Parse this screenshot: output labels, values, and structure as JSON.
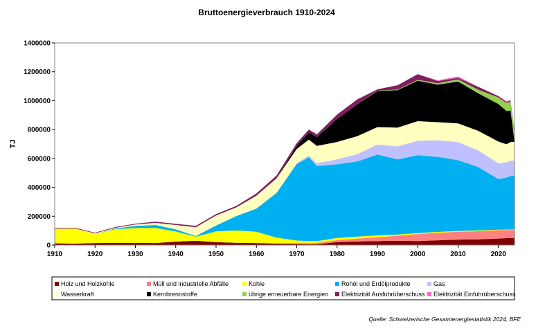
{
  "chart_data": {
    "type": "area",
    "title": "Bruttoenergieverbrauch 1910-2024",
    "ylabel": "TJ",
    "xlabel": "",
    "xlim": [
      1910,
      2024
    ],
    "ylim": [
      0,
      1400000
    ],
    "x_ticks": [
      "1910",
      "1920",
      "1930",
      "1940",
      "1950",
      "1960",
      "1970",
      "1980",
      "1990",
      "2000",
      "2010",
      "2020"
    ],
    "y_ticks": [
      "0",
      "200000",
      "400000",
      "600000",
      "800000",
      "1000000",
      "1200000",
      "1400000"
    ],
    "grid": false,
    "legend_position": "bottom",
    "source": "Quelle: Schweizerische Gesamtenergiestatistik 2024, BFE",
    "years": [
      1910,
      1915,
      1920,
      1925,
      1930,
      1935,
      1940,
      1945,
      1950,
      1955,
      1960,
      1965,
      1970,
      1973,
      1975,
      1980,
      1985,
      1990,
      1995,
      2000,
      2005,
      2010,
      2015,
      2020,
      2022,
      2023,
      2024
    ],
    "series": [
      {
        "name": "Holz und Holzkohle",
        "color": "#7f0000",
        "values": [
          12000,
          10000,
          14000,
          15000,
          15000,
          14000,
          24000,
          30000,
          20000,
          16000,
          14000,
          10000,
          8000,
          6000,
          6000,
          20000,
          25000,
          28000,
          30000,
          28000,
          33000,
          38000,
          40000,
          45000,
          48000,
          48000,
          48000
        ]
      },
      {
        "name": "Müll und  industrielle Abfälle",
        "color": "#ff8080",
        "values": [
          0,
          0,
          0,
          0,
          0,
          0,
          0,
          0,
          0,
          0,
          0,
          2000,
          5000,
          7000,
          9000,
          14000,
          20000,
          25000,
          35000,
          48000,
          52000,
          54000,
          56000,
          58000,
          56000,
          56000,
          56000
        ]
      },
      {
        "name": "Kohle",
        "color": "#ffff00",
        "values": [
          100000,
          105000,
          62000,
          95000,
          103000,
          105000,
          70000,
          28000,
          75000,
          85000,
          78000,
          40000,
          18000,
          15000,
          12000,
          15000,
          14000,
          14000,
          8000,
          7000,
          6000,
          6000,
          5000,
          4000,
          4000,
          4000,
          4000
        ]
      },
      {
        "name": "Rohöl und Erdölprodukte",
        "color": "#00b0f0",
        "values": [
          0,
          0,
          0,
          5000,
          15000,
          20000,
          15000,
          5000,
          40000,
          100000,
          160000,
          310000,
          530000,
          580000,
          520000,
          510000,
          520000,
          560000,
          520000,
          540000,
          520000,
          490000,
          440000,
          350000,
          360000,
          370000,
          375000
        ]
      },
      {
        "name": "Gas",
        "color": "#c0c0ff",
        "values": [
          0,
          0,
          0,
          0,
          0,
          0,
          0,
          0,
          0,
          0,
          0,
          0,
          5000,
          12000,
          20000,
          35000,
          50000,
          70000,
          90000,
          100000,
          115000,
          125000,
          115000,
          110000,
          105000,
          105000,
          105000
        ]
      },
      {
        "name": "Wasserkraft",
        "color": "#ffffc0",
        "values": [
          0,
          0,
          5000,
          5000,
          10000,
          15000,
          30000,
          60000,
          70000,
          60000,
          90000,
          100000,
          100000,
          110000,
          120000,
          120000,
          125000,
          120000,
          130000,
          135000,
          125000,
          130000,
          135000,
          150000,
          125000,
          130000,
          128000
        ]
      },
      {
        "name": "Kernbrennstoffe",
        "color": "#000000",
        "values": [
          0,
          0,
          0,
          0,
          0,
          0,
          0,
          0,
          0,
          0,
          0,
          0,
          20000,
          50000,
          60000,
          160000,
          220000,
          250000,
          260000,
          280000,
          260000,
          290000,
          260000,
          260000,
          230000,
          220000,
          0
        ]
      },
      {
        "name": "übrige erneuerbare Energien",
        "color": "#92d050",
        "values": [
          0,
          0,
          0,
          0,
          0,
          0,
          0,
          0,
          0,
          0,
          0,
          0,
          0,
          0,
          0,
          0,
          0,
          2000,
          4000,
          6000,
          10000,
          15000,
          25000,
          45000,
          55000,
          60000,
          65000
        ]
      },
      {
        "name": "Elektrizität Ausfuhrüberschuss",
        "color": "#7f1f5f",
        "values": [
          5000,
          5000,
          5000,
          5000,
          5000,
          8000,
          8000,
          10000,
          10000,
          10000,
          15000,
          20000,
          20000,
          20000,
          20000,
          30000,
          35000,
          10000,
          30000,
          40000,
          15000,
          10000,
          20000,
          10000,
          5000,
          10000,
          10000
        ]
      },
      {
        "name": "Elektrizität Einfuhrüberschuss",
        "color": "#ff66cc",
        "values": [
          0,
          0,
          0,
          0,
          0,
          0,
          0,
          0,
          0,
          0,
          0,
          0,
          0,
          0,
          0,
          0,
          0,
          0,
          0,
          0,
          5000,
          10000,
          0,
          0,
          10000,
          0,
          0
        ]
      }
    ]
  }
}
